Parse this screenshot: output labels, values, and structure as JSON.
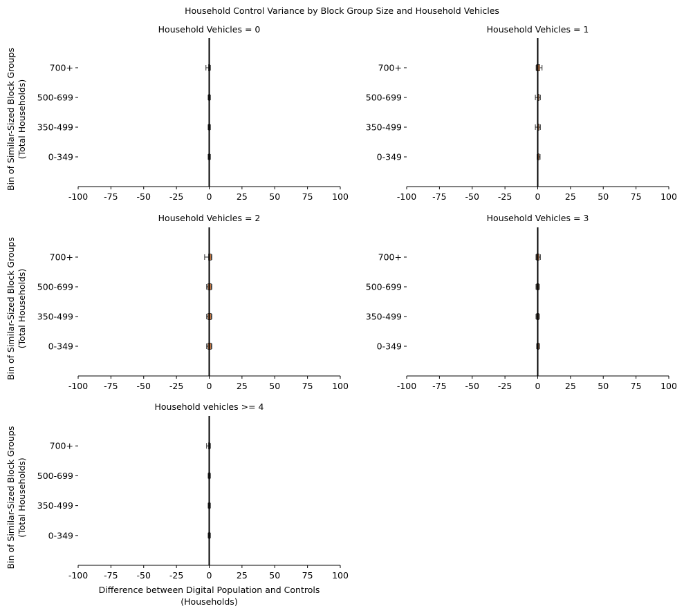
{
  "figure": {
    "title": "Household Control Variance by Block Group Size and Household Vehicles",
    "ylabel_line1": "Bin of Similar-Sized Block Groups",
    "ylabel_line2": "(Total Households)",
    "xlabel_line1": "Difference between Digital Population and Controls",
    "xlabel_line2": "(Households)"
  },
  "colors": {
    "box_fill": "#d9834a",
    "box_edge": "#2a2a2a",
    "zero_line": "#000000",
    "axis": "#000000"
  },
  "chart_data": [
    {
      "type": "boxplot",
      "title": "Household Vehicles = 0",
      "categories": [
        "0-349",
        "350-499",
        "500-699",
        "700+"
      ],
      "xlim": [
        -100,
        100
      ],
      "xticks": [
        -100,
        -75,
        -50,
        -25,
        0,
        25,
        50,
        75,
        100
      ],
      "boxes": [
        {
          "category": "0-349",
          "whisker_low": -0.8,
          "q1": -0.4,
          "median": 0,
          "q3": 0.5,
          "whisker_high": 0.9
        },
        {
          "category": "350-499",
          "whisker_low": -0.8,
          "q1": -0.4,
          "median": 0,
          "q3": 0.5,
          "whisker_high": 0.9
        },
        {
          "category": "500-699",
          "whisker_low": -0.8,
          "q1": -0.4,
          "median": 0,
          "q3": 0.5,
          "whisker_high": 0.9
        },
        {
          "category": "700+",
          "whisker_low": -2.5,
          "q1": -0.5,
          "median": 0,
          "q3": 0.5,
          "whisker_high": 0.9
        }
      ]
    },
    {
      "type": "boxplot",
      "title": "Household Vehicles = 1",
      "categories": [
        "0-349",
        "350-499",
        "500-699",
        "700+"
      ],
      "xlim": [
        -100,
        100
      ],
      "xticks": [
        -100,
        -75,
        -50,
        -25,
        0,
        25,
        50,
        75,
        100
      ],
      "boxes": [
        {
          "category": "0-349",
          "whisker_low": -0.5,
          "q1": -0.2,
          "median": 0.3,
          "q3": 1.0,
          "whisker_high": 1.8
        },
        {
          "category": "350-499",
          "whisker_low": -1.8,
          "q1": -0.3,
          "median": 0.3,
          "q3": 1.0,
          "whisker_high": 2.0
        },
        {
          "category": "500-699",
          "whisker_low": -1.8,
          "q1": -0.3,
          "median": 0.3,
          "q3": 1.0,
          "whisker_high": 2.0
        },
        {
          "category": "700+",
          "whisker_low": -1.2,
          "q1": -0.9,
          "median": 0.2,
          "q3": 1.5,
          "whisker_high": 3.3
        }
      ]
    },
    {
      "type": "boxplot",
      "title": "Household Vehicles = 2",
      "categories": [
        "0-349",
        "350-499",
        "500-699",
        "700+"
      ],
      "xlim": [
        -100,
        100
      ],
      "xticks": [
        -100,
        -75,
        -50,
        -25,
        0,
        25,
        50,
        75,
        100
      ],
      "boxes": [
        {
          "category": "0-349",
          "whisker_low": -2.0,
          "q1": -1.0,
          "median": 0.3,
          "q3": 1.5,
          "whisker_high": 2.0
        },
        {
          "category": "350-499",
          "whisker_low": -2.0,
          "q1": -1.0,
          "median": 0.3,
          "q3": 1.5,
          "whisker_high": 2.0
        },
        {
          "category": "500-699",
          "whisker_low": -2.0,
          "q1": -1.0,
          "median": 0.3,
          "q3": 1.5,
          "whisker_high": 2.0
        },
        {
          "category": "700+",
          "whisker_low": -3.5,
          "q1": -0.5,
          "median": 0.3,
          "q3": 1.5,
          "whisker_high": 2.0
        }
      ]
    },
    {
      "type": "boxplot",
      "title": "Household Vehicles = 3",
      "categories": [
        "0-349",
        "350-499",
        "500-699",
        "700+"
      ],
      "xlim": [
        -100,
        100
      ],
      "xticks": [
        -100,
        -75,
        -50,
        -25,
        0,
        25,
        50,
        75,
        100
      ],
      "boxes": [
        {
          "category": "0-349",
          "whisker_low": -0.8,
          "q1": -0.5,
          "median": 0,
          "q3": 0.9,
          "whisker_high": 1.3
        },
        {
          "category": "350-499",
          "whisker_low": -1.3,
          "q1": -0.8,
          "median": 0,
          "q3": 0.8,
          "whisker_high": 1.2
        },
        {
          "category": "500-699",
          "whisker_low": -1.3,
          "q1": -0.8,
          "median": 0,
          "q3": 0.8,
          "whisker_high": 1.2
        },
        {
          "category": "700+",
          "whisker_low": -1.3,
          "q1": -0.9,
          "median": 0,
          "q3": 1.0,
          "whisker_high": 2.0
        }
      ]
    },
    {
      "type": "boxplot",
      "title": "Household vehicles >= 4",
      "categories": [
        "0-349",
        "350-499",
        "500-699",
        "700+"
      ],
      "xlim": [
        -100,
        100
      ],
      "xticks": [
        -100,
        -75,
        -50,
        -25,
        0,
        25,
        50,
        75,
        100
      ],
      "boxes": [
        {
          "category": "0-349",
          "whisker_low": -0.8,
          "q1": -0.4,
          "median": 0,
          "q3": 0.5,
          "whisker_high": 0.9
        },
        {
          "category": "350-499",
          "whisker_low": -0.8,
          "q1": -0.4,
          "median": 0,
          "q3": 0.5,
          "whisker_high": 0.9
        },
        {
          "category": "500-699",
          "whisker_low": -0.8,
          "q1": -0.4,
          "median": 0,
          "q3": 0.5,
          "whisker_high": 0.9
        },
        {
          "category": "700+",
          "whisker_low": -2.0,
          "q1": -0.5,
          "median": 0,
          "q3": 0.5,
          "whisker_high": 0.9
        }
      ]
    }
  ]
}
